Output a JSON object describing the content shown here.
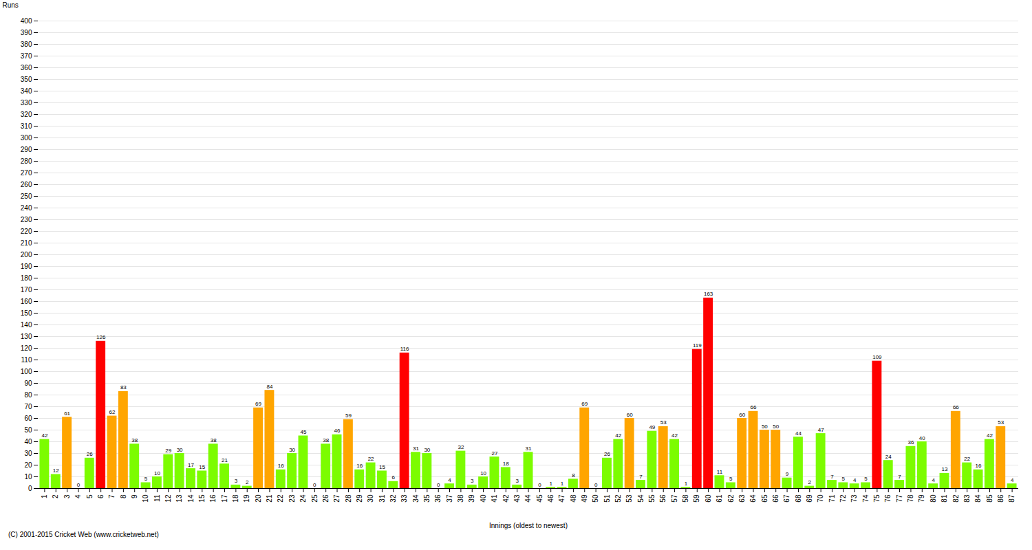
{
  "chart_data": {
    "type": "bar",
    "xlabel": "Innings (oldest to newest)",
    "ylabel": "Runs",
    "annotations": [
      "(C) 2001-2015 Cricket Web (www.cricketweb.net)"
    ],
    "categories": [
      "1",
      "2",
      "3",
      "4",
      "5",
      "6",
      "7",
      "8",
      "9",
      "10",
      "11",
      "12",
      "13",
      "14",
      "15",
      "16",
      "17",
      "18",
      "19",
      "20",
      "21",
      "22",
      "23",
      "24",
      "25",
      "26",
      "27",
      "28",
      "29",
      "30",
      "31",
      "32",
      "33",
      "34",
      "35",
      "36",
      "37",
      "38",
      "39",
      "40",
      "41",
      "42",
      "43",
      "44",
      "45",
      "46",
      "47",
      "48",
      "49",
      "50",
      "51",
      "52",
      "53",
      "54",
      "55",
      "56",
      "57",
      "58",
      "59",
      "60",
      "61",
      "62",
      "63",
      "64",
      "65",
      "66",
      "67",
      "68",
      "69",
      "70",
      "71",
      "72",
      "73",
      "74",
      "75",
      "76",
      "77",
      "78",
      "79",
      "80",
      "81",
      "82",
      "83",
      "84",
      "85",
      "86",
      "87"
    ],
    "values": [
      42,
      12,
      61,
      0,
      26,
      126,
      62,
      83,
      38,
      5,
      10,
      29,
      30,
      17,
      15,
      38,
      21,
      3,
      2,
      69,
      84,
      16,
      30,
      45,
      0,
      38,
      46,
      59,
      16,
      22,
      15,
      6,
      116,
      31,
      30,
      0,
      4,
      32,
      3,
      10,
      27,
      18,
      3,
      31,
      0,
      1,
      1,
      8,
      69,
      0,
      26,
      42,
      60,
      7,
      49,
      53,
      42,
      1,
      119,
      163,
      11,
      5,
      60,
      66,
      50,
      50,
      9,
      44,
      2,
      47,
      7,
      5,
      4,
      5,
      109,
      24,
      7,
      36,
      40,
      4,
      13,
      66,
      22,
      16,
      42,
      53,
      4
    ],
    "colors": [
      "#7CFC00",
      "#7CFC00",
      "#FFA500",
      "#7CFC00",
      "#7CFC00",
      "#FF0000",
      "#FFA500",
      "#FFA500",
      "#7CFC00",
      "#7CFC00",
      "#7CFC00",
      "#7CFC00",
      "#7CFC00",
      "#7CFC00",
      "#7CFC00",
      "#7CFC00",
      "#7CFC00",
      "#7CFC00",
      "#7CFC00",
      "#FFA500",
      "#FFA500",
      "#7CFC00",
      "#7CFC00",
      "#7CFC00",
      "#7CFC00",
      "#7CFC00",
      "#7CFC00",
      "#FFA500",
      "#7CFC00",
      "#7CFC00",
      "#7CFC00",
      "#7CFC00",
      "#FF0000",
      "#7CFC00",
      "#7CFC00",
      "#7CFC00",
      "#7CFC00",
      "#7CFC00",
      "#7CFC00",
      "#7CFC00",
      "#7CFC00",
      "#7CFC00",
      "#7CFC00",
      "#7CFC00",
      "#7CFC00",
      "#7CFC00",
      "#7CFC00",
      "#7CFC00",
      "#FFA500",
      "#7CFC00",
      "#7CFC00",
      "#7CFC00",
      "#FFA500",
      "#7CFC00",
      "#7CFC00",
      "#FFA500",
      "#7CFC00",
      "#7CFC00",
      "#FF0000",
      "#FF0000",
      "#7CFC00",
      "#7CFC00",
      "#FFA500",
      "#FFA500",
      "#FFA500",
      "#FFA500",
      "#7CFC00",
      "#7CFC00",
      "#7CFC00",
      "#7CFC00",
      "#7CFC00",
      "#7CFC00",
      "#7CFC00",
      "#7CFC00",
      "#FF0000",
      "#7CFC00",
      "#7CFC00",
      "#7CFC00",
      "#7CFC00",
      "#7CFC00",
      "#7CFC00",
      "#FFA500",
      "#7CFC00",
      "#7CFC00",
      "#7CFC00",
      "#FFA500",
      "#7CFC00"
    ],
    "ylim": [
      0,
      400
    ],
    "yticks": [
      0,
      10,
      20,
      30,
      40,
      50,
      60,
      70,
      80,
      90,
      100,
      110,
      120,
      130,
      140,
      150,
      160,
      170,
      180,
      190,
      200,
      210,
      220,
      230,
      240,
      250,
      260,
      270,
      280,
      290,
      300,
      310,
      320,
      330,
      340,
      350,
      360,
      370,
      380,
      390,
      400
    ],
    "grid": true,
    "data_labels": true
  }
}
